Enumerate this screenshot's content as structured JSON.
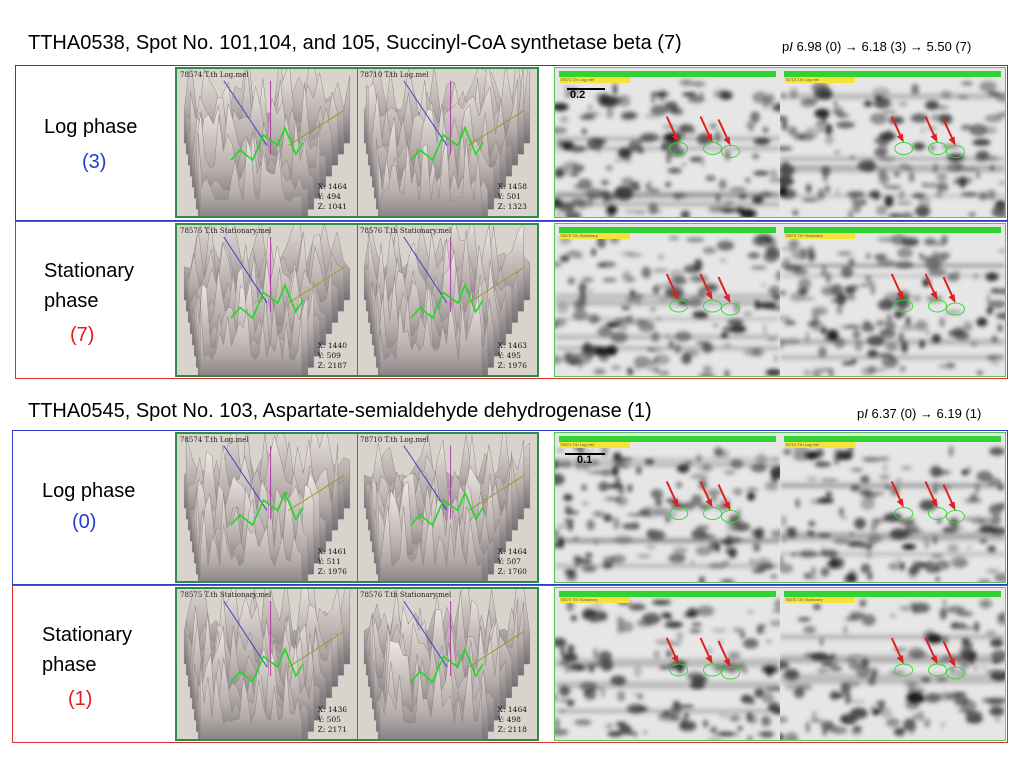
{
  "section1": {
    "title": "TTHA0538, Spot No. 101,104, and 105, Succinyl-CoA synthetase beta (7)",
    "pi_prefix": "p",
    "pi_italic": "I",
    "pi_values": " 6.98 (0) → 6.18 (3) → 5.50 (7)",
    "log": {
      "label": "Log phase",
      "count": "(3)",
      "panels": [
        {
          "file": "78574 T.th Log.mel",
          "x": "X: 1464",
          "y": "Y: 494",
          "z": "Z: 1041"
        },
        {
          "file": "78710 T.th Log.mel",
          "x": "X: 1458",
          "y": "Y: 501",
          "z": "Z: 1323"
        }
      ],
      "scale": "0.2"
    },
    "stationary": {
      "label_line1": "Stationary",
      "label_line2": "phase",
      "count": "(7)",
      "panels": [
        {
          "file": "78575 T.th Stationary.mel",
          "x": "X: 1440",
          "y": "Y: 509",
          "z": "Z: 2187"
        },
        {
          "file": "78576 T.th Stationary.mel",
          "x": "X: 1463",
          "y": "Y: 495",
          "z": "Z: 1976"
        }
      ]
    }
  },
  "section2": {
    "title": "TTHA0545, Spot No. 103, Aspartate-semialdehyde dehydrogenase (1)",
    "pi_prefix": "p",
    "pi_italic": "I",
    "pi_values": " 6.37 (0) → 6.19 (1)",
    "log": {
      "label": "Log phase",
      "count": "(0)",
      "panels": [
        {
          "file": "78574 T.th Log.mel",
          "x": "X: 1461",
          "y": "Y: 511",
          "z": "Z: 1976"
        },
        {
          "file": "78710 T.th Log.mel",
          "x": "X: 1464",
          "y": "Y: 507",
          "z": "Z: 1760"
        }
      ],
      "scale": "0.1"
    },
    "stationary": {
      "label_line1": "Stationary",
      "label_line2": "phase",
      "count": "(1)",
      "panels": [
        {
          "file": "78575 T.th Stationary.mel",
          "x": "X: 1436",
          "y": "Y: 505",
          "z": "Z: 2171"
        },
        {
          "file": "78576 T.th Stationary.mel",
          "x": "X: 1464",
          "y": "Y: 498",
          "z": "Z: 2118"
        }
      ]
    }
  },
  "colors": {
    "log_border": "#2a3fc9",
    "stationary_border": "#d9302c",
    "panel_border": "#2f8a4b",
    "gel_border": "#55c455",
    "arrow": "#e02020"
  }
}
